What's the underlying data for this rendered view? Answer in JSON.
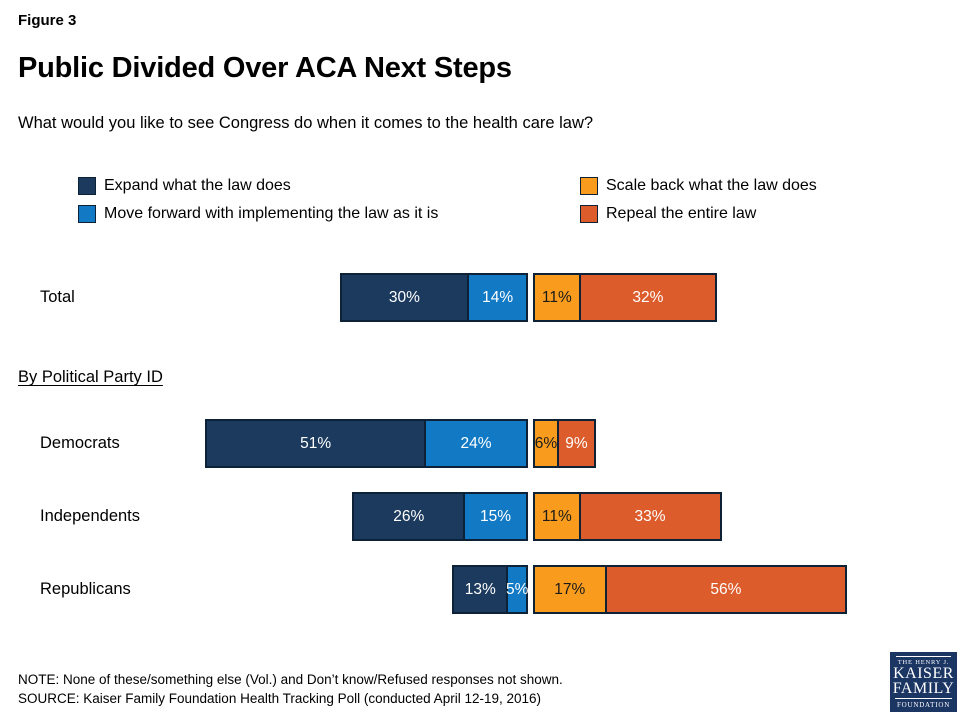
{
  "header": {
    "figure_label": "Figure 3",
    "title": "Public Divided Over ACA Next Steps",
    "question": "What would you like to see Congress do when it comes to the health care law?"
  },
  "legend": {
    "position": "top",
    "items": [
      {
        "label": "Expand what the law does",
        "color": "#1b3a5e"
      },
      {
        "label": "Move forward with implementing the law as it is",
        "color": "#127ac5"
      },
      {
        "label": "Scale back what the law does",
        "color": "#f99c1e"
      },
      {
        "label": "Repeal the entire law",
        "color": "#dc5c2b"
      }
    ]
  },
  "chart_data": {
    "type": "bar",
    "orientation": "horizontal-diverging-stacked",
    "unit": "percent",
    "value_suffix": "%",
    "categories": [
      "Total",
      "Democrats",
      "Independents",
      "Republicans"
    ],
    "section_label": "By Political Party ID",
    "series": [
      {
        "name": "Expand what the law does",
        "side": "left",
        "color": "#1b3a5e",
        "text_color": "#ffffff",
        "values": [
          30,
          51,
          26,
          13
        ]
      },
      {
        "name": "Move forward with implementing the law as it is",
        "side": "left",
        "color": "#127ac5",
        "text_color": "#ffffff",
        "values": [
          14,
          24,
          15,
          5
        ]
      },
      {
        "name": "Scale back what the law does",
        "side": "right",
        "color": "#f99c1e",
        "text_color": "#1a1a1a",
        "values": [
          11,
          6,
          11,
          17
        ]
      },
      {
        "name": "Repeal the entire law",
        "side": "right",
        "color": "#dc5c2b",
        "text_color": "#ffffff",
        "values": [
          32,
          9,
          33,
          56
        ]
      }
    ],
    "border_color": "#0d2137",
    "legend_position": "top"
  },
  "footer": {
    "note": "NOTE: None of these/something else (Vol.) and Don’t know/Refused responses not shown.",
    "source": "SOURCE: Kaiser Family Foundation Health Tracking Poll (conducted April 12-19, 2016)"
  },
  "logo": {
    "line1": "THE HENRY J.",
    "line2": "KAISER",
    "line3": "FAMILY",
    "line4": "FOUNDATION",
    "bg_color": "#1c3664"
  }
}
